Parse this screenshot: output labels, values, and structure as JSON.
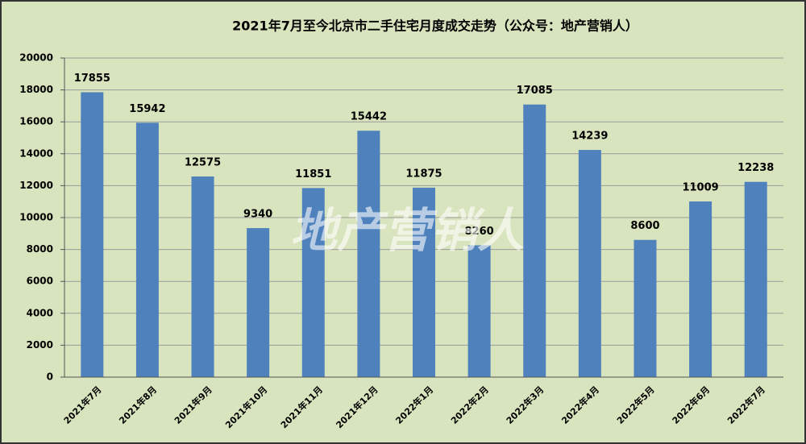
{
  "chart_data": {
    "type": "bar",
    "title": "2021年7月至今北京市二手住宅月度成交走势（公众号：地产营销人）",
    "annotation": "地产营销人",
    "categories": [
      "2021年7月",
      "2021年8月",
      "2021年9月",
      "2021年10月",
      "2021年11月",
      "2021年12月",
      "2022年1月",
      "2022年2月",
      "2022年3月",
      "2022年4月",
      "2022年5月",
      "2022年6月",
      "2022年7月"
    ],
    "values": [
      17855,
      15942,
      12575,
      9340,
      11851,
      15442,
      11875,
      8260,
      17085,
      14239,
      8600,
      11009,
      12238
    ],
    "color": "#4f81bd",
    "ylim": [
      0,
      20000
    ],
    "yticks": [
      0,
      2000,
      4000,
      6000,
      8000,
      10000,
      12000,
      14000,
      16000,
      18000,
      20000
    ],
    "grid": true
  }
}
